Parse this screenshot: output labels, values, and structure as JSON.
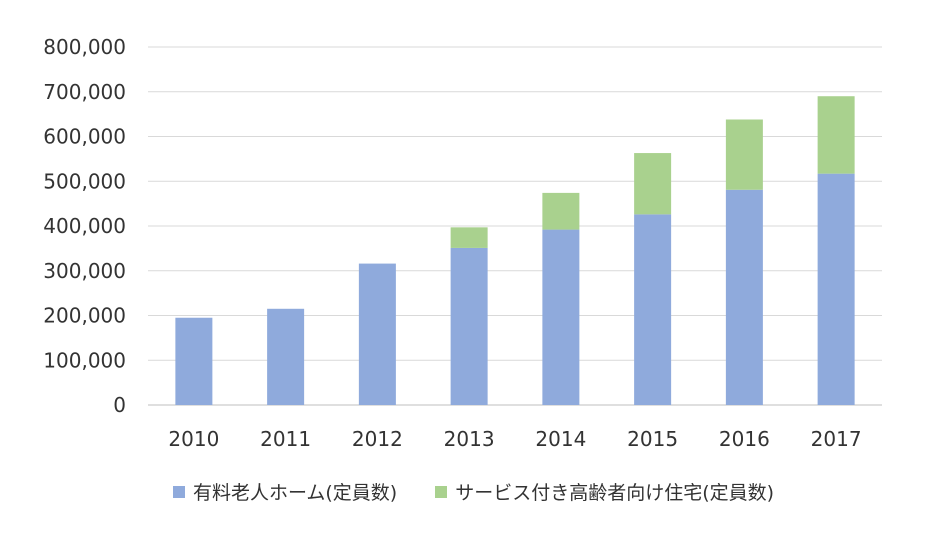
{
  "chart_data": {
    "type": "bar",
    "stacked": true,
    "categories": [
      "2010",
      "2011",
      "2012",
      "2013",
      "2014",
      "2015",
      "2016",
      "2017"
    ],
    "series": [
      {
        "name": "有料老人ホーム(定員数)",
        "color": "#8faadc",
        "values": [
          195000,
          215000,
          316000,
          351000,
          392000,
          426000,
          481000,
          517000
        ]
      },
      {
        "name": "サービス付き高齢者向け住宅(定員数)",
        "color": "#a9d18e",
        "values": [
          0,
          0,
          0,
          46000,
          82000,
          137000,
          157000,
          173000
        ]
      }
    ],
    "ylim": [
      0,
      800000
    ],
    "yticks": [
      "0",
      "100,000",
      "200,000",
      "300,000",
      "400,000",
      "500,000",
      "600,000",
      "700,000",
      "800,000"
    ],
    "grid": true,
    "legend_position": "bottom"
  }
}
